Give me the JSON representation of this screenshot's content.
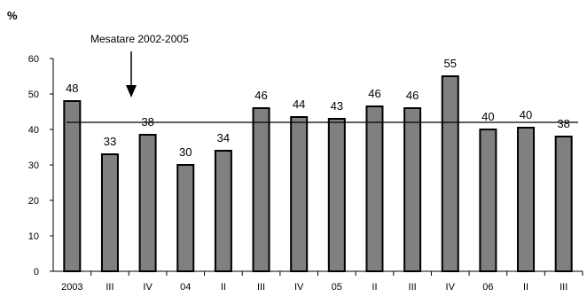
{
  "chart_data": {
    "type": "bar",
    "ylabel": "%",
    "ylim": [
      0,
      60
    ],
    "yticks": [
      "0",
      "10",
      "20",
      "30",
      "40",
      "50",
      "60"
    ],
    "categories": [
      "2003",
      "III",
      "IV",
      "04",
      "II",
      "III",
      "IV",
      "05",
      "II",
      "III",
      "IV",
      "06",
      "II",
      "III"
    ],
    "values": [
      48,
      33,
      38.5,
      30,
      34,
      46,
      43.5,
      43,
      46.5,
      46,
      55,
      40,
      40.5,
      38
    ],
    "data_labels": [
      "48",
      "33",
      "38",
      "30",
      "34",
      "46",
      "44",
      "43",
      "46",
      "46",
      "55",
      "40",
      "40",
      "38"
    ],
    "reference_line": {
      "label": "Mesatare 2002-2005",
      "value": 42
    },
    "grid": false,
    "legend": "none",
    "colors": {
      "bar_fill": "#808080",
      "bar_stroke": "#000000",
      "line": "#000000"
    }
  }
}
